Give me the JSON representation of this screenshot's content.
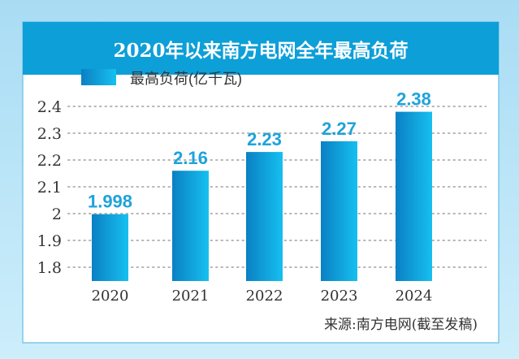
{
  "chart_data": {
    "type": "bar",
    "title": "2020年以来南方电网全年最高负荷",
    "legend": [
      "最高负荷(亿千瓦)"
    ],
    "legend_position": "top-left",
    "categories": [
      "2020",
      "2021",
      "2022",
      "2023",
      "2024"
    ],
    "values": [
      1.998,
      2.16,
      2.23,
      2.27,
      2.38
    ],
    "value_labels": [
      "1.998",
      "2.16",
      "2.23",
      "2.27",
      "2.38"
    ],
    "yticks": [
      "2.4",
      "2.3",
      "2.2",
      "2.1",
      "2",
      "1.9",
      "1.8"
    ],
    "ytick_values": [
      2.4,
      2.3,
      2.2,
      2.1,
      2.0,
      1.9,
      1.8
    ],
    "ylim": [
      1.75,
      2.4
    ],
    "grid": true,
    "xlabel": "",
    "ylabel": "",
    "source": "来源:南方电网(截至发稿)",
    "colors": {
      "title_bar": "#0d9fd8",
      "bar_dark": "#0a80c4",
      "bar_light": "#16c0ef",
      "value_label": "#1ea3dc"
    }
  }
}
